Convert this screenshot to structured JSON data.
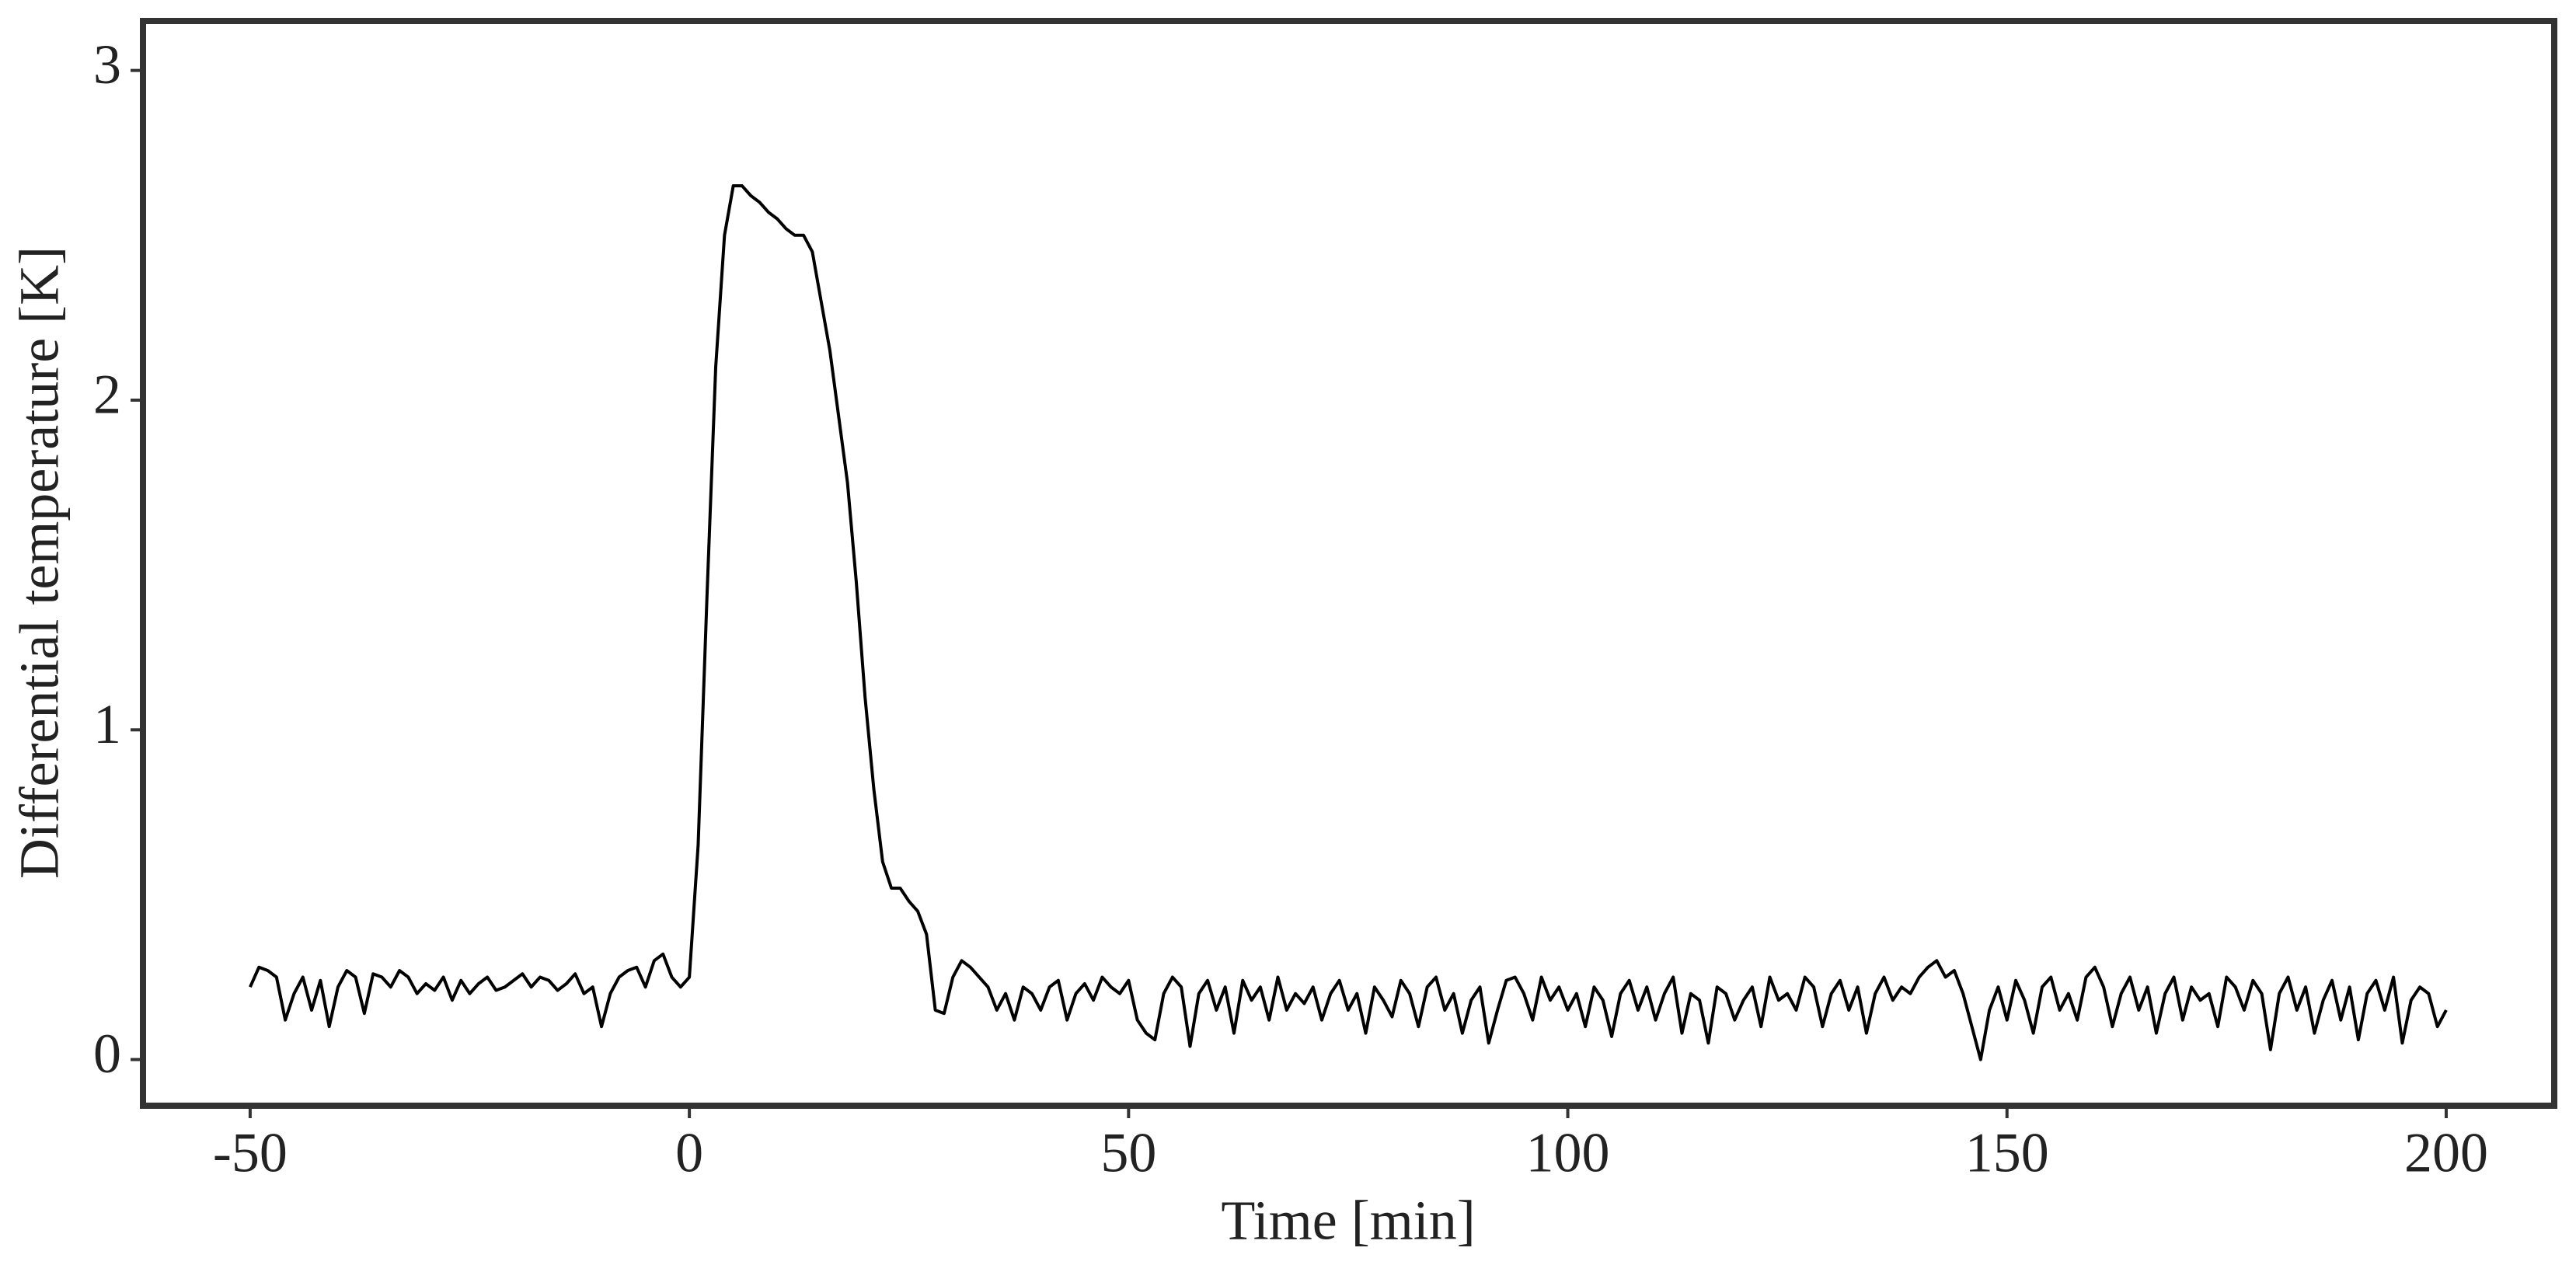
{
  "chart_data": {
    "type": "line",
    "xlabel": "Time [min]",
    "ylabel": "Differential temperature [K]",
    "color": "#000000",
    "xlim": [
      -62.2,
      212.3
    ],
    "ylim": [
      -0.14,
      3.15
    ],
    "xticks": [
      -50,
      0,
      50,
      100,
      150,
      200
    ],
    "yticks": [
      0,
      1,
      2,
      3
    ],
    "x": [
      -50,
      -49,
      -48,
      -47,
      -46,
      -45,
      -44,
      -43,
      -42,
      -41,
      -40,
      -39,
      -38,
      -37,
      -36,
      -35,
      -34,
      -33,
      -32,
      -31,
      -30,
      -29,
      -28,
      -27,
      -26,
      -25,
      -24,
      -23,
      -22,
      -21,
      -20,
      -19,
      -18,
      -17,
      -16,
      -15,
      -14,
      -13,
      -12,
      -11,
      -10,
      -9,
      -8,
      -7,
      -6,
      -5,
      -4,
      -3,
      -2,
      -1,
      0,
      1,
      2,
      3,
      4,
      5,
      6,
      7,
      8,
      9,
      10,
      11,
      12,
      13,
      14,
      15,
      16,
      17,
      18,
      19,
      20,
      21,
      22,
      23,
      24,
      25,
      26,
      27,
      28,
      29,
      30,
      31,
      32,
      33,
      34,
      35,
      36,
      37,
      38,
      39,
      40,
      41,
      42,
      43,
      44,
      45,
      46,
      47,
      48,
      49,
      50,
      51,
      52,
      53,
      54,
      55,
      56,
      57,
      58,
      59,
      60,
      61,
      62,
      63,
      64,
      65,
      66,
      67,
      68,
      69,
      70,
      71,
      72,
      73,
      74,
      75,
      76,
      77,
      78,
      79,
      80,
      81,
      82,
      83,
      84,
      85,
      86,
      87,
      88,
      89,
      90,
      91,
      92,
      93,
      94,
      95,
      96,
      97,
      98,
      99,
      100,
      101,
      102,
      103,
      104,
      105,
      106,
      107,
      108,
      109,
      110,
      111,
      112,
      113,
      114,
      115,
      116,
      117,
      118,
      119,
      120,
      121,
      122,
      123,
      124,
      125,
      126,
      127,
      128,
      129,
      130,
      131,
      132,
      133,
      134,
      135,
      136,
      137,
      138,
      139,
      140,
      141,
      142,
      143,
      144,
      145,
      146,
      147,
      148,
      149,
      150,
      151,
      152,
      153,
      154,
      155,
      156,
      157,
      158,
      159,
      160,
      161,
      162,
      163,
      164,
      165,
      166,
      167,
      168,
      169,
      170,
      171,
      172,
      173,
      174,
      175,
      176,
      177,
      178,
      179,
      180,
      181,
      182,
      183,
      184,
      185,
      186,
      187,
      188,
      189,
      190,
      191,
      192,
      193,
      194,
      195,
      196,
      197,
      198,
      199,
      200
    ],
    "values": [
      0.22,
      0.28,
      0.27,
      0.25,
      0.12,
      0.2,
      0.25,
      0.15,
      0.24,
      0.1,
      0.22,
      0.27,
      0.25,
      0.14,
      0.26,
      0.25,
      0.22,
      0.27,
      0.25,
      0.2,
      0.23,
      0.21,
      0.25,
      0.18,
      0.24,
      0.2,
      0.23,
      0.25,
      0.21,
      0.22,
      0.24,
      0.26,
      0.22,
      0.25,
      0.24,
      0.21,
      0.23,
      0.26,
      0.2,
      0.22,
      0.1,
      0.2,
      0.25,
      0.27,
      0.28,
      0.22,
      0.3,
      0.32,
      0.25,
      0.22,
      0.25,
      0.65,
      1.4,
      2.1,
      2.5,
      2.65,
      2.65,
      2.62,
      2.6,
      2.57,
      2.55,
      2.52,
      2.5,
      2.5,
      2.45,
      2.3,
      2.15,
      1.95,
      1.75,
      1.45,
      1.1,
      0.82,
      0.6,
      0.52,
      0.52,
      0.48,
      0.45,
      0.38,
      0.15,
      0.14,
      0.25,
      0.3,
      0.28,
      0.25,
      0.22,
      0.15,
      0.2,
      0.12,
      0.22,
      0.2,
      0.15,
      0.22,
      0.24,
      0.12,
      0.2,
      0.23,
      0.18,
      0.25,
      0.22,
      0.2,
      0.24,
      0.12,
      0.08,
      0.06,
      0.2,
      0.25,
      0.22,
      0.04,
      0.2,
      0.24,
      0.15,
      0.22,
      0.08,
      0.24,
      0.18,
      0.22,
      0.12,
      0.25,
      0.15,
      0.2,
      0.17,
      0.22,
      0.12,
      0.2,
      0.24,
      0.15,
      0.2,
      0.08,
      0.22,
      0.18,
      0.13,
      0.24,
      0.2,
      0.1,
      0.22,
      0.25,
      0.15,
      0.2,
      0.08,
      0.18,
      0.22,
      0.05,
      0.15,
      0.24,
      0.25,
      0.2,
      0.12,
      0.25,
      0.18,
      0.22,
      0.15,
      0.2,
      0.1,
      0.22,
      0.18,
      0.07,
      0.2,
      0.24,
      0.15,
      0.22,
      0.12,
      0.2,
      0.25,
      0.08,
      0.2,
      0.18,
      0.05,
      0.22,
      0.2,
      0.12,
      0.18,
      0.22,
      0.1,
      0.25,
      0.18,
      0.2,
      0.15,
      0.25,
      0.22,
      0.1,
      0.2,
      0.24,
      0.15,
      0.22,
      0.08,
      0.2,
      0.25,
      0.18,
      0.22,
      0.2,
      0.25,
      0.28,
      0.3,
      0.25,
      0.27,
      0.2,
      0.1,
      0.0,
      0.15,
      0.22,
      0.12,
      0.24,
      0.18,
      0.08,
      0.22,
      0.25,
      0.15,
      0.2,
      0.12,
      0.25,
      0.28,
      0.22,
      0.1,
      0.2,
      0.25,
      0.15,
      0.22,
      0.08,
      0.2,
      0.25,
      0.12,
      0.22,
      0.18,
      0.2,
      0.1,
      0.25,
      0.22,
      0.15,
      0.24,
      0.2,
      0.03,
      0.2,
      0.25,
      0.15,
      0.22,
      0.08,
      0.18,
      0.24,
      0.12,
      0.22,
      0.06,
      0.2,
      0.24,
      0.15,
      0.25,
      0.05,
      0.18,
      0.22,
      0.2,
      0.1,
      0.15
    ]
  }
}
